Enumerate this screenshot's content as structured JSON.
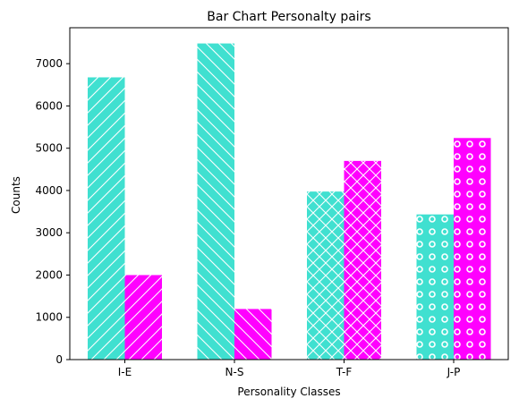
{
  "chart_data": {
    "type": "bar",
    "title": "Bar Chart Personalty pairs",
    "xlabel": "Personality Classes",
    "ylabel": "Counts",
    "categories": [
      "I-E",
      "N-S",
      "T-F",
      "J-P"
    ],
    "series": [
      {
        "values": [
          6676,
          7478,
          3975,
          3434
        ]
      },
      {
        "values": [
          1999,
          1197,
          4700,
          5241
        ]
      }
    ],
    "ylim": [
      0,
      7850
    ],
    "yticks": [
      0,
      1000,
      2000,
      3000,
      4000,
      5000,
      6000,
      7000
    ],
    "grid": false,
    "colors": [
      "#40e0d0",
      "#ff00ff"
    ],
    "hatches": [
      "//",
      "\\\\",
      "xx",
      "o"
    ]
  }
}
